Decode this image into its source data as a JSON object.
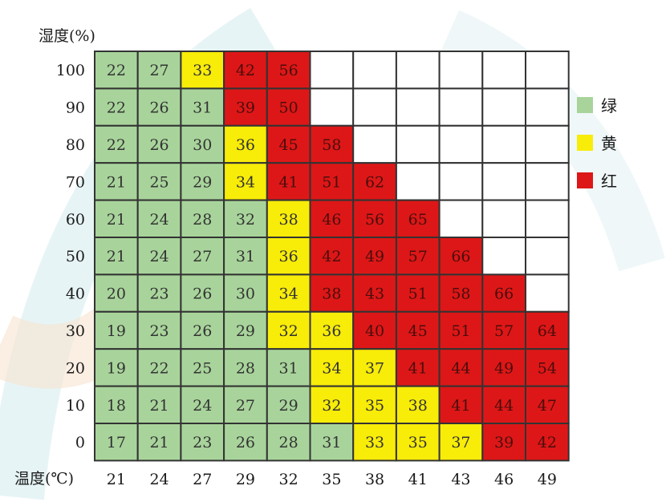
{
  "chart_data": {
    "type": "heatmap",
    "title": "",
    "ylabel": "湿度(%)",
    "xlabel": "温度(℃)",
    "x_ticks": [
      21,
      24,
      27,
      29,
      32,
      35,
      38,
      41,
      43,
      46,
      49
    ],
    "y_ticks": [
      100,
      90,
      80,
      70,
      60,
      50,
      40,
      30,
      20,
      10,
      0
    ],
    "values": [
      [
        22,
        27,
        33,
        42,
        56,
        null,
        null,
        null,
        null,
        null,
        null
      ],
      [
        22,
        26,
        31,
        39,
        50,
        null,
        null,
        null,
        null,
        null,
        null
      ],
      [
        22,
        26,
        30,
        36,
        45,
        58,
        null,
        null,
        null,
        null,
        null
      ],
      [
        21,
        25,
        29,
        34,
        41,
        51,
        62,
        null,
        null,
        null,
        null
      ],
      [
        21,
        24,
        28,
        32,
        38,
        46,
        56,
        65,
        null,
        null,
        null
      ],
      [
        21,
        24,
        27,
        31,
        36,
        42,
        49,
        57,
        66,
        null,
        null
      ],
      [
        20,
        23,
        26,
        30,
        34,
        38,
        43,
        51,
        58,
        66,
        null
      ],
      [
        19,
        23,
        26,
        29,
        32,
        36,
        40,
        45,
        51,
        57,
        64
      ],
      [
        19,
        22,
        25,
        28,
        31,
        34,
        37,
        41,
        44,
        49,
        54
      ],
      [
        18,
        21,
        24,
        27,
        29,
        32,
        35,
        38,
        41,
        44,
        47
      ],
      [
        17,
        21,
        23,
        26,
        28,
        31,
        33,
        35,
        37,
        39,
        42
      ]
    ],
    "categories_grid": [
      [
        "g",
        "g",
        "y",
        "r",
        "r",
        "w",
        "w",
        "w",
        "w",
        "w",
        "w"
      ],
      [
        "g",
        "g",
        "g",
        "r",
        "r",
        "w",
        "w",
        "w",
        "w",
        "w",
        "w"
      ],
      [
        "g",
        "g",
        "g",
        "y",
        "r",
        "r",
        "w",
        "w",
        "w",
        "w",
        "w"
      ],
      [
        "g",
        "g",
        "g",
        "y",
        "r",
        "r",
        "r",
        "w",
        "w",
        "w",
        "w"
      ],
      [
        "g",
        "g",
        "g",
        "g",
        "y",
        "r",
        "r",
        "r",
        "w",
        "w",
        "w"
      ],
      [
        "g",
        "g",
        "g",
        "g",
        "y",
        "r",
        "r",
        "r",
        "r",
        "w",
        "w"
      ],
      [
        "g",
        "g",
        "g",
        "g",
        "y",
        "r",
        "r",
        "r",
        "r",
        "r",
        "w"
      ],
      [
        "g",
        "g",
        "g",
        "g",
        "y",
        "y",
        "r",
        "r",
        "r",
        "r",
        "r"
      ],
      [
        "g",
        "g",
        "g",
        "g",
        "g",
        "y",
        "y",
        "r",
        "r",
        "r",
        "r"
      ],
      [
        "g",
        "g",
        "g",
        "g",
        "g",
        "y",
        "y",
        "y",
        "r",
        "r",
        "r"
      ],
      [
        "g",
        "g",
        "g",
        "g",
        "g",
        "g",
        "y",
        "y",
        "y",
        "r",
        "r"
      ]
    ],
    "legend": [
      {
        "key": "g",
        "label": "绿",
        "color": "#a8d49b"
      },
      {
        "key": "y",
        "label": "黄",
        "color": "#f8ec09"
      },
      {
        "key": "r",
        "label": "红",
        "color": "#dd1717"
      }
    ],
    "legend_position": "right",
    "empty_color": "#ffffff",
    "grid_line_color": "#333333"
  }
}
